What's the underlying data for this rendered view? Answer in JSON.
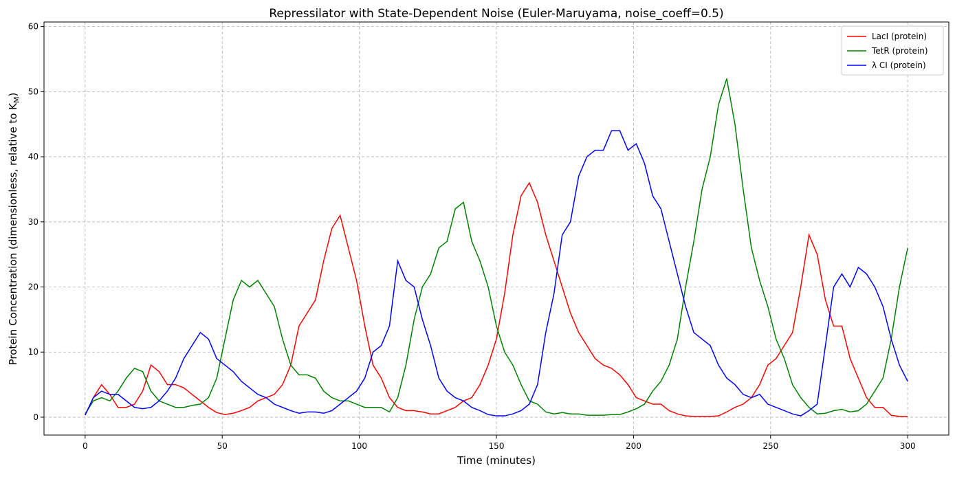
{
  "chart_data": {
    "type": "line",
    "title": "Repressilator with State-Dependent Noise (Euler-Maruyama, noise_coeff=0.5)",
    "xlabel": "Time (minutes)",
    "ylabel": "Protein Concentration (dimensionless, relative to K",
    "ylabel_subscript": "M",
    "ylabel_end": ")",
    "x": [
      0,
      3,
      6,
      9,
      12,
      15,
      18,
      21,
      24,
      27,
      30,
      33,
      36,
      39,
      42,
      45,
      48,
      51,
      54,
      57,
      60,
      63,
      66,
      69,
      72,
      75,
      78,
      81,
      84,
      87,
      90,
      93,
      96,
      99,
      102,
      105,
      108,
      111,
      114,
      117,
      120,
      123,
      126,
      129,
      132,
      135,
      138,
      141,
      144,
      147,
      150,
      153,
      156,
      159,
      162,
      165,
      168,
      171,
      174,
      177,
      180,
      183,
      186,
      189,
      192,
      195,
      198,
      201,
      204,
      207,
      210,
      213,
      216,
      219,
      222,
      225,
      228,
      231,
      234,
      237,
      240,
      243,
      246,
      249,
      252,
      255,
      258,
      261,
      264,
      267,
      270,
      273,
      276,
      279,
      282,
      285,
      288,
      291,
      294,
      297,
      300
    ],
    "series": [
      {
        "name": "LacI (protein)",
        "color": "#ff0000",
        "values": [
          0.3,
          3,
          5,
          3.5,
          1.5,
          1.5,
          2,
          4,
          8,
          7,
          5,
          5,
          4.5,
          3.5,
          2.5,
          1.5,
          0.7,
          0.4,
          0.6,
          1,
          1.5,
          2.5,
          3,
          3.5,
          5,
          8,
          14,
          16,
          18,
          24,
          29,
          31,
          26,
          21,
          14,
          8,
          6,
          3,
          1.5,
          1,
          1,
          0.8,
          0.5,
          0.5,
          1,
          1.5,
          2.5,
          3,
          5,
          8,
          12,
          19,
          28,
          34,
          36,
          33,
          28,
          24,
          20,
          16,
          13,
          11,
          9,
          8,
          7.5,
          6.5,
          5,
          3,
          2.5,
          2,
          2,
          1,
          0.5,
          0.2,
          0.1,
          0.1,
          0.1,
          0.2,
          0.8,
          1.5,
          2,
          3,
          5,
          8,
          9,
          11,
          13,
          20,
          28,
          25,
          18,
          14,
          14,
          9,
          6,
          3,
          1.5,
          1.5,
          0.3,
          0.1,
          0.1
        ]
      },
      {
        "name": "TetR (protein)",
        "color": "#008000",
        "values": [
          0.5,
          2.5,
          3,
          2.5,
          4,
          6,
          7.5,
          7,
          4,
          2.5,
          2,
          1.5,
          1.5,
          1.8,
          2,
          3,
          6,
          12,
          18,
          21,
          20,
          21,
          19,
          17,
          12,
          8,
          6.5,
          6.5,
          6,
          4,
          3,
          2.5,
          2.5,
          2,
          1.5,
          1.5,
          1.5,
          0.8,
          3,
          8,
          15,
          20,
          22,
          26,
          27,
          32,
          33,
          27,
          24,
          20,
          14,
          10,
          8,
          5,
          2.5,
          2,
          0.8,
          0.5,
          0.7,
          0.5,
          0.5,
          0.3,
          0.3,
          0.3,
          0.4,
          0.4,
          0.8,
          1.3,
          2,
          4,
          5.5,
          8,
          12,
          20,
          27,
          35,
          40,
          48,
          52,
          45,
          35,
          26,
          21,
          17,
          12,
          9,
          5,
          3,
          1.5,
          0.5,
          0.6,
          1,
          1.2,
          0.8,
          1,
          2,
          4,
          6,
          12,
          20,
          26
        ]
      },
      {
        "name": "λ CI (protein)",
        "color": "#0000ff",
        "values": [
          0.3,
          3,
          4,
          3.5,
          3.5,
          2.5,
          1.5,
          1.3,
          1.5,
          2.5,
          4,
          6,
          9,
          11,
          13,
          12,
          9,
          8,
          7,
          5.5,
          4.5,
          3.5,
          3,
          2,
          1.5,
          1,
          0.6,
          0.8,
          0.8,
          0.6,
          1,
          2,
          3,
          4,
          6,
          10,
          11,
          14,
          24,
          21,
          20,
          15,
          11,
          6,
          4,
          3,
          2.5,
          1.5,
          1,
          0.4,
          0.2,
          0.2,
          0.5,
          1,
          2,
          5,
          13,
          19,
          28,
          30,
          37,
          40,
          41,
          41,
          44,
          44,
          41,
          42,
          39,
          34,
          32,
          27,
          22,
          17,
          13,
          12,
          11,
          8,
          6,
          5,
          3.5,
          3,
          3.5,
          2,
          1.5,
          1,
          0.5,
          0.2,
          1,
          2,
          11,
          20,
          22,
          20,
          23,
          22,
          20,
          17,
          12,
          8,
          5.5
        ]
      }
    ],
    "xlim": [
      -15,
      315
    ],
    "ylim": [
      -2.75,
      60.7
    ],
    "xticks": [
      0,
      50,
      100,
      150,
      200,
      250,
      300
    ],
    "yticks": [
      0,
      10,
      20,
      30,
      40,
      50,
      60
    ],
    "grid": true,
    "legend": "upper right"
  }
}
